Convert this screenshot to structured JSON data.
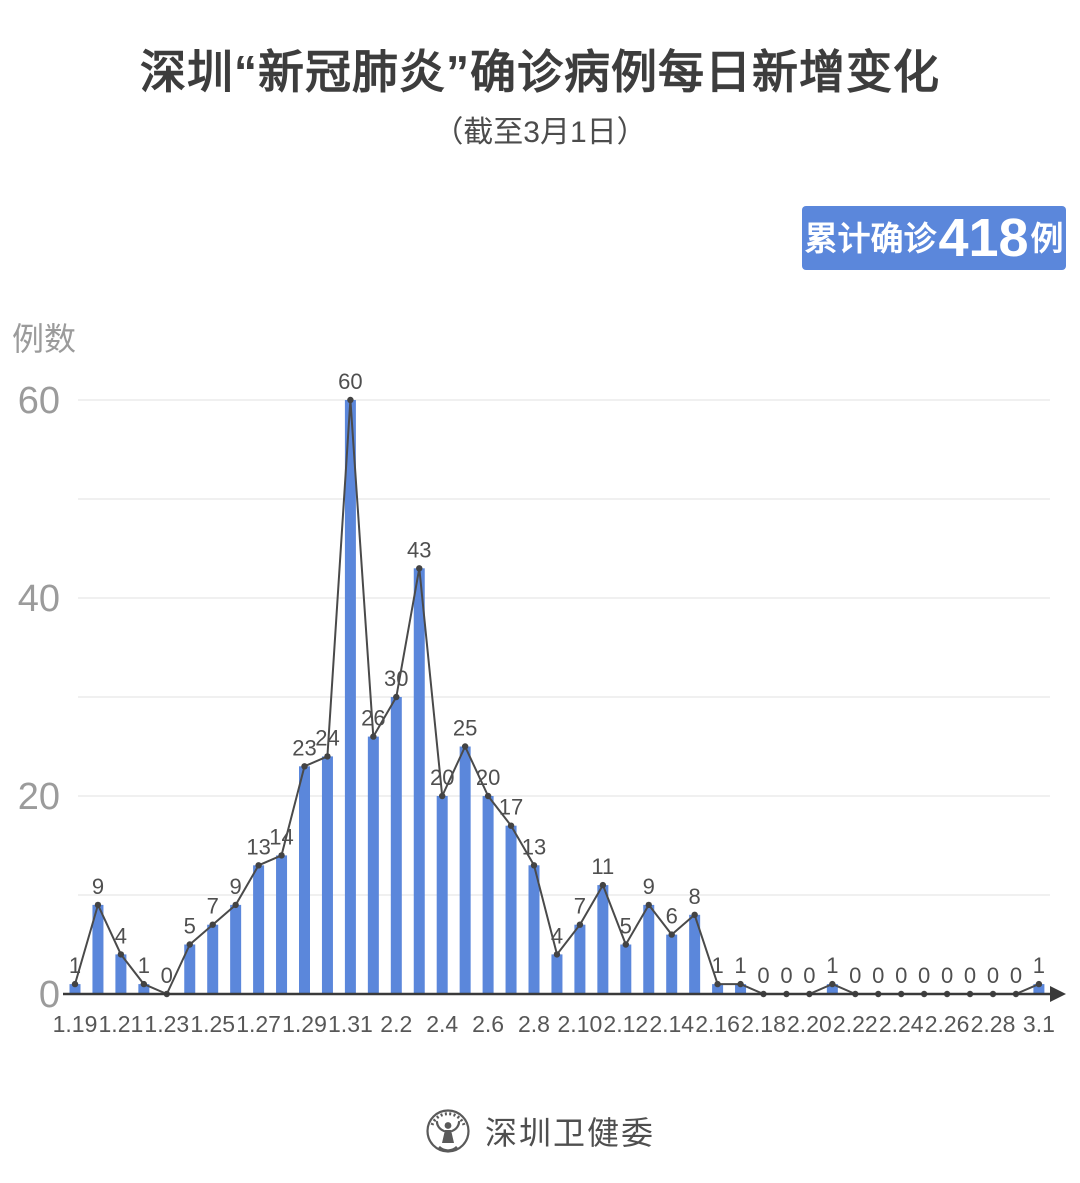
{
  "header": {
    "title": "深圳“新冠肺炎”确诊病例每日新增变化",
    "subtitle": "（截至3月1日）"
  },
  "badge": {
    "prefix": "累计确诊",
    "count": "418",
    "suffix": "例",
    "bg_color": "#5b87db"
  },
  "footer": {
    "org_name": "深圳卫健委"
  },
  "chart_data": {
    "type": "bar",
    "overlay": "line",
    "title": "深圳“新冠肺炎”确诊病例每日新增变化",
    "subtitle": "（截至3月1日）",
    "ylabel": "例数",
    "xlabel": "",
    "categories": [
      "1.19",
      "1.20",
      "1.21",
      "1.22",
      "1.23",
      "1.24",
      "1.25",
      "1.26",
      "1.27",
      "1.28",
      "1.29",
      "1.30",
      "1.31",
      "2.1",
      "2.2",
      "2.3",
      "2.4",
      "2.5",
      "2.6",
      "2.7",
      "2.8",
      "2.9",
      "2.10",
      "2.11",
      "2.12",
      "2.13",
      "2.14",
      "2.15",
      "2.16",
      "2.17",
      "2.18",
      "2.19",
      "2.20",
      "2.21",
      "2.22",
      "2.23",
      "2.24",
      "2.25",
      "2.26",
      "2.27",
      "2.28",
      "2.29",
      "3.1"
    ],
    "values": [
      1,
      9,
      4,
      1,
      0,
      5,
      7,
      9,
      13,
      14,
      23,
      24,
      60,
      26,
      30,
      43,
      20,
      25,
      20,
      17,
      13,
      4,
      7,
      11,
      5,
      9,
      6,
      8,
      1,
      1,
      0,
      0,
      0,
      1,
      0,
      0,
      0,
      0,
      0,
      0,
      0,
      0,
      1
    ],
    "x_tick_labels": [
      "1.19",
      "1.21",
      "1.23",
      "1.25",
      "1.27",
      "1.29",
      "1.31",
      "2.2",
      "2.4",
      "2.6",
      "2.8",
      "2.10",
      "2.12",
      "2.14",
      "2.16",
      "2.18",
      "2.20",
      "2.22",
      "2.24",
      "2.26",
      "2.28",
      "3.1"
    ],
    "x_tick_every": 2,
    "y_ticks": [
      0,
      20,
      40,
      60
    ],
    "ylim": [
      0,
      60
    ],
    "grid_interval": 10,
    "grid": "horizontal",
    "legend_position": "none",
    "data_labels": true,
    "cumulative_total": 418,
    "bar_color": "#5b87db",
    "line_color": "#4a4a4a",
    "marker_color": "#434343",
    "axis_color": "#3a3a3a",
    "grid_color": "#ebebeb",
    "tick_label_color": "#9b9b9b",
    "data_label_color": "#4f4f4f"
  }
}
